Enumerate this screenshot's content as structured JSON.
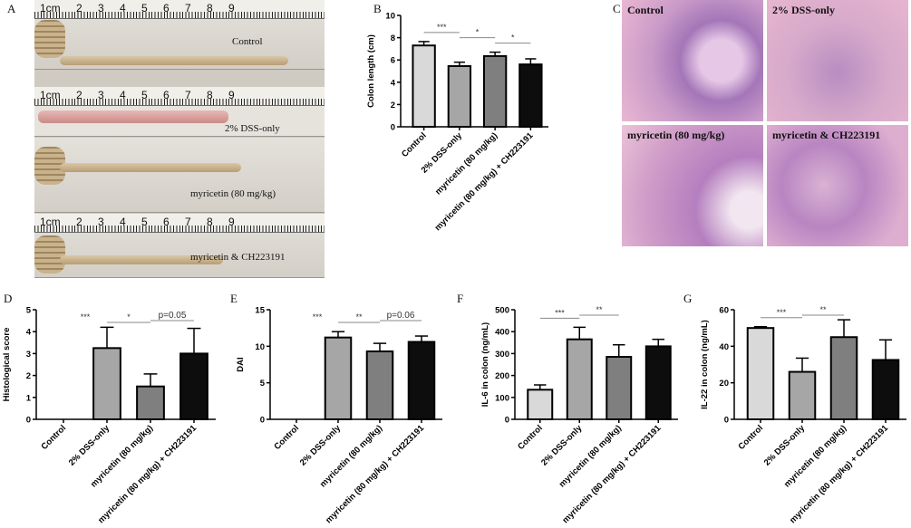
{
  "panel_labels": {
    "a": "A",
    "b": "B",
    "c": "C",
    "d": "D",
    "e": "E",
    "f": "F",
    "g": "G"
  },
  "photo": {
    "ruler_text": "1cm 2 3 4 5 6 7 8 9",
    "strips": [
      "Control",
      "2% DSS-only",
      "myricetin (80 mg/kg)",
      "myricetin & CH223191"
    ]
  },
  "histology": {
    "panels": [
      "Control",
      "2% DSS-only",
      "myricetin (80 mg/kg)",
      "myricetin & CH223191"
    ]
  },
  "colors": {
    "Control": "#d9d9d9",
    "2% DSS-only": "#a6a6a6",
    "myricetin (80 mg/kg)": "#7f7f7f",
    "myricetin (80 mg/kg) + CH223191": "#0d0d0d"
  },
  "chart_data": [
    {
      "id": "B",
      "type": "bar",
      "ylabel": "Colon length (cm)",
      "ylim": [
        0,
        10
      ],
      "yticks": [
        0,
        2,
        4,
        6,
        8,
        10
      ],
      "categories": [
        "Control",
        "2% DSS-only",
        "myricetin (80 mg/kg)",
        "myricetin (80 mg/kg) + CH223191"
      ],
      "values": [
        7.3,
        5.45,
        6.35,
        5.6
      ],
      "errors": [
        0.35,
        0.35,
        0.35,
        0.5
      ],
      "significance": [
        {
          "from": 0,
          "to": 1,
          "label": "***",
          "line": true
        },
        {
          "from": 1,
          "to": 2,
          "label": "*",
          "line": true
        },
        {
          "from": 2,
          "to": 3,
          "label": "*",
          "line": true
        }
      ]
    },
    {
      "id": "D",
      "type": "bar",
      "ylabel": "Histological score",
      "ylim": [
        0,
        5
      ],
      "yticks": [
        0,
        1,
        2,
        3,
        4,
        5
      ],
      "categories": [
        "Control",
        "2% DSS-only",
        "myricetin (80 mg/kg)",
        "myricetin (80 mg/kg) + CH223191"
      ],
      "values": [
        0,
        3.25,
        1.5,
        3.0
      ],
      "errors": [
        0,
        0.95,
        0.57,
        1.15
      ],
      "significance": [
        {
          "from": 0,
          "to": 1,
          "label": "***",
          "line": false
        },
        {
          "from": 1,
          "to": 2,
          "label": "*",
          "line": true
        },
        {
          "from": 2,
          "to": 3,
          "label": "p=0.05",
          "line": true
        }
      ]
    },
    {
      "id": "E",
      "type": "bar",
      "ylabel": "DAI",
      "ylim": [
        0,
        15
      ],
      "yticks": [
        0,
        5,
        10,
        15
      ],
      "categories": [
        "Control",
        "2% DSS-only",
        "myricetin (80 mg/kg)",
        "myricetin (80 mg/kg) + CH223191"
      ],
      "values": [
        0,
        11.2,
        9.3,
        10.6
      ],
      "errors": [
        0,
        0.8,
        1.1,
        0.8
      ],
      "significance": [
        {
          "from": 0,
          "to": 1,
          "label": "***",
          "line": false
        },
        {
          "from": 1,
          "to": 2,
          "label": "**",
          "line": true
        },
        {
          "from": 2,
          "to": 3,
          "label": "p=0.06",
          "line": true
        }
      ]
    },
    {
      "id": "F",
      "type": "bar",
      "ylabel": "IL-6 in colon (ng/mL)",
      "ylim": [
        0,
        500
      ],
      "yticks": [
        0,
        100,
        200,
        300,
        400,
        500
      ],
      "categories": [
        "Control",
        "2% DSS-only",
        "myricetin (80 mg/kg)",
        "myricetin (80 mg/kg) + CH223191"
      ],
      "values": [
        135,
        365,
        285,
        333
      ],
      "errors": [
        22,
        55,
        55,
        32
      ],
      "significance": [
        {
          "from": 0,
          "to": 1,
          "label": "***",
          "line": true
        },
        {
          "from": 1,
          "to": 2,
          "label": "**",
          "line": true
        }
      ]
    },
    {
      "id": "G",
      "type": "bar",
      "ylabel": "IL-22 in colon (ng/mL)",
      "ylim": [
        0,
        60
      ],
      "yticks": [
        0,
        20,
        40,
        60
      ],
      "categories": [
        "Control",
        "2% DSS-only",
        "myricetin (80 mg/kg)",
        "myricetin (80 mg/kg) + CH223191"
      ],
      "values": [
        50,
        26,
        45,
        32.5
      ],
      "errors": [
        0.7,
        7.5,
        9.5,
        11
      ],
      "significance": [
        {
          "from": 0,
          "to": 1,
          "label": "***",
          "line": true
        },
        {
          "from": 1,
          "to": 2,
          "label": "**",
          "line": true
        }
      ]
    }
  ]
}
